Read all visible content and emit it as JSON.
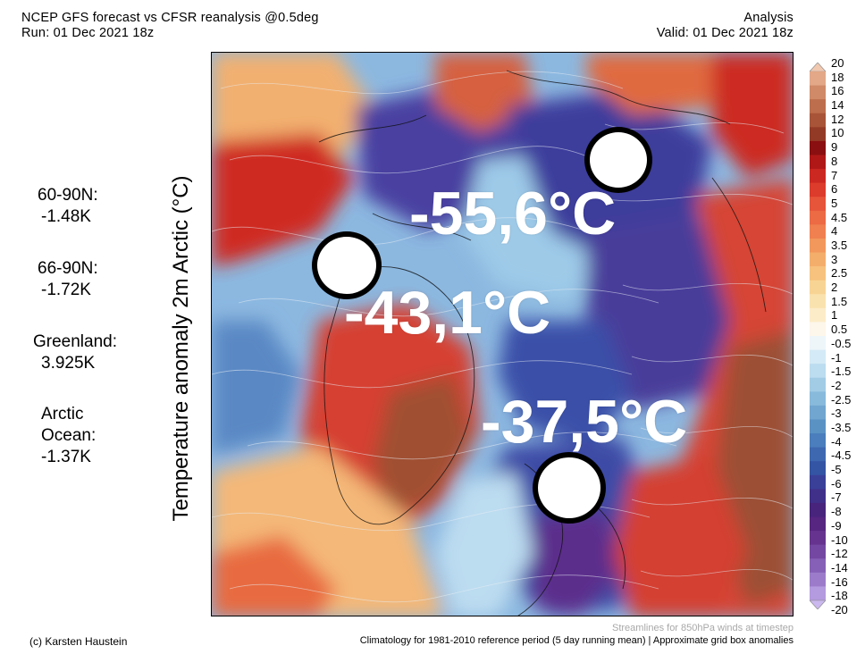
{
  "header": {
    "title": "NCEP GFS forecast vs CFSR reanalysis @0.5deg",
    "run": "Run: 01 Dec 2021 18z",
    "kind": "Analysis",
    "valid": "Valid: 01 Dec 2021 18z"
  },
  "stats": [
    {
      "label": "60-90N:",
      "value": "-1.48K"
    },
    {
      "label": "66-90N:",
      "value": "-1.72K"
    },
    {
      "label": "Greenland:",
      "value": "3.925K"
    },
    {
      "label": "Arctic",
      "label2": "Ocean:",
      "value": "-1.37K"
    }
  ],
  "y_axis_label": "Temperature anomaly 2m Arctic (°C)",
  "annotations": [
    "-55,6°C",
    "-43,1°C",
    "-37,5°C"
  ],
  "colorbar": {
    "labels": [
      "20",
      "18",
      "16",
      "14",
      "12",
      "10",
      "9",
      "8",
      "7",
      "6",
      "5",
      "4.5",
      "4",
      "3.5",
      "3",
      "2.5",
      "2",
      "1.5",
      "1",
      "0.5",
      "-0.5",
      "-1",
      "-1.5",
      "-2",
      "-2.5",
      "-3",
      "-3.5",
      "-4",
      "-4.5",
      "-5",
      "-6",
      "-7",
      "-8",
      "-9",
      "-10",
      "-12",
      "-14",
      "-16",
      "-18",
      "-20"
    ],
    "colors": [
      "#f0c8b0",
      "#e2a888",
      "#d08a68",
      "#bd6e4c",
      "#a85438",
      "#933a26",
      "#8a0f10",
      "#b01818",
      "#cc2822",
      "#dc3c2c",
      "#e6543a",
      "#ec6a44",
      "#f08050",
      "#f2985c",
      "#f4ae6c",
      "#f6c27e",
      "#f8d494",
      "#fae2ae",
      "#fcecc8",
      "#fdf6ea",
      "#eef6fa",
      "#d4eaf6",
      "#bcdcf0",
      "#a2cce6",
      "#88badc",
      "#70a6d0",
      "#5a92c4",
      "#4a7ebc",
      "#3e68b0",
      "#3454a4",
      "#3a4098",
      "#40308a",
      "#48247c",
      "#562680",
      "#66348e",
      "#7448a2",
      "#8660b6",
      "#9c7cca",
      "#b49ade",
      "#cab8ee"
    ]
  },
  "footer": {
    "streamlines": "Streamlines for 850hPa winds at timestep",
    "credit": "(c) Karsten Haustein",
    "climatology": "Climatology for 1981-2010 reference period (5 day running mean) | Approximate grid box anomalies"
  }
}
